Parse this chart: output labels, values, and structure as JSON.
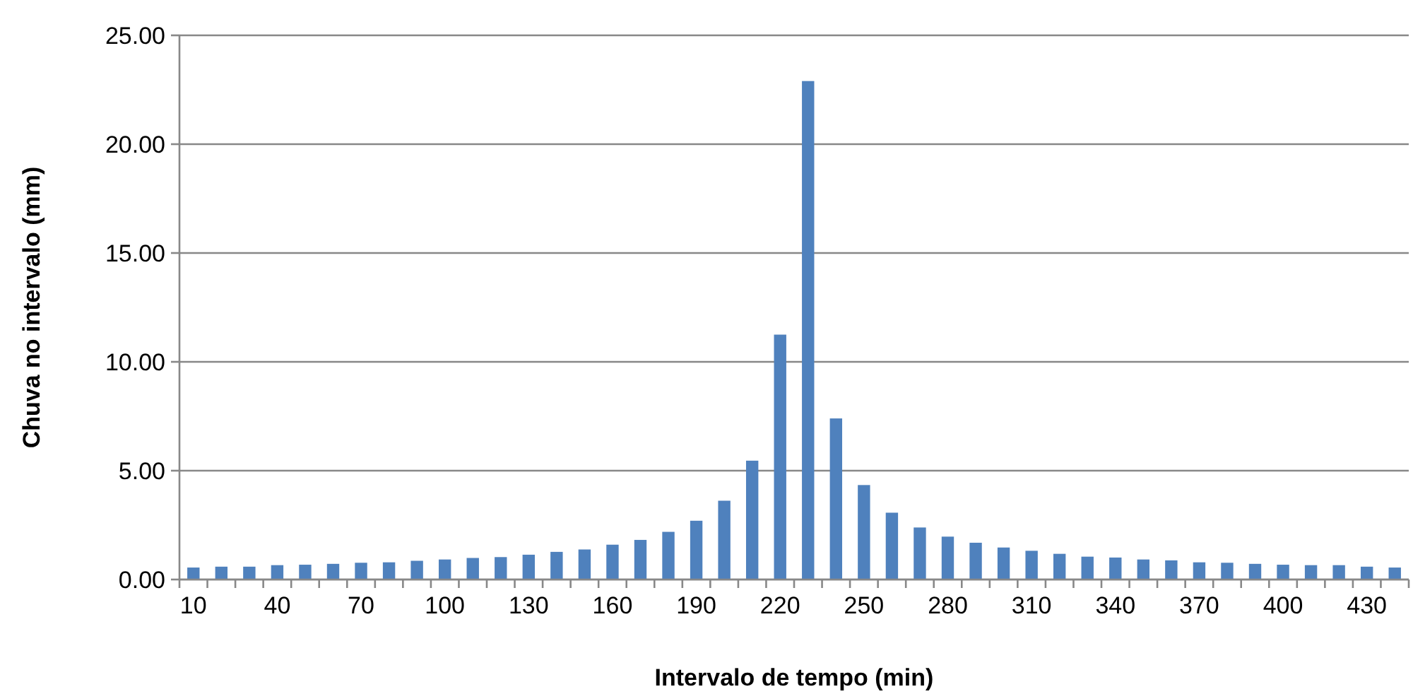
{
  "chart_data": {
    "type": "bar",
    "xlabel": "Intervalo de tempo (min)",
    "ylabel": "Chuva no intervalo (mm)",
    "categories": [
      "10",
      null,
      null,
      "40",
      null,
      null,
      "70",
      null,
      null,
      "100",
      null,
      null,
      "130",
      null,
      null,
      "160",
      null,
      null,
      "190",
      null,
      null,
      "220",
      null,
      null,
      "250",
      null,
      null,
      "280",
      null,
      null,
      "310",
      null,
      null,
      "340",
      null,
      null,
      "370",
      null,
      null,
      "400",
      null,
      null,
      "430",
      null
    ],
    "values": [
      0.55,
      0.59,
      0.59,
      0.66,
      0.68,
      0.72,
      0.77,
      0.79,
      0.86,
      0.92,
      0.99,
      1.03,
      1.14,
      1.27,
      1.38,
      1.6,
      1.82,
      2.19,
      2.7,
      3.62,
      5.46,
      11.25,
      22.9,
      7.4,
      4.34,
      3.07,
      2.39,
      1.97,
      1.69,
      1.47,
      1.32,
      1.18,
      1.05,
      1.01,
      0.92,
      0.88,
      0.79,
      0.77,
      0.72,
      0.68,
      0.66,
      0.66,
      0.59,
      0.55
    ],
    "color": "#4f81bd",
    "ylim": [
      0,
      25
    ],
    "yticks": [
      {
        "value": 0,
        "label": "0.00"
      },
      {
        "value": 5,
        "label": "5.00"
      },
      {
        "value": 10,
        "label": "10.00"
      },
      {
        "value": 15,
        "label": "15.00"
      },
      {
        "value": 20,
        "label": "20.00"
      },
      {
        "value": 25,
        "label": "25.00"
      }
    ],
    "grid": "y"
  }
}
